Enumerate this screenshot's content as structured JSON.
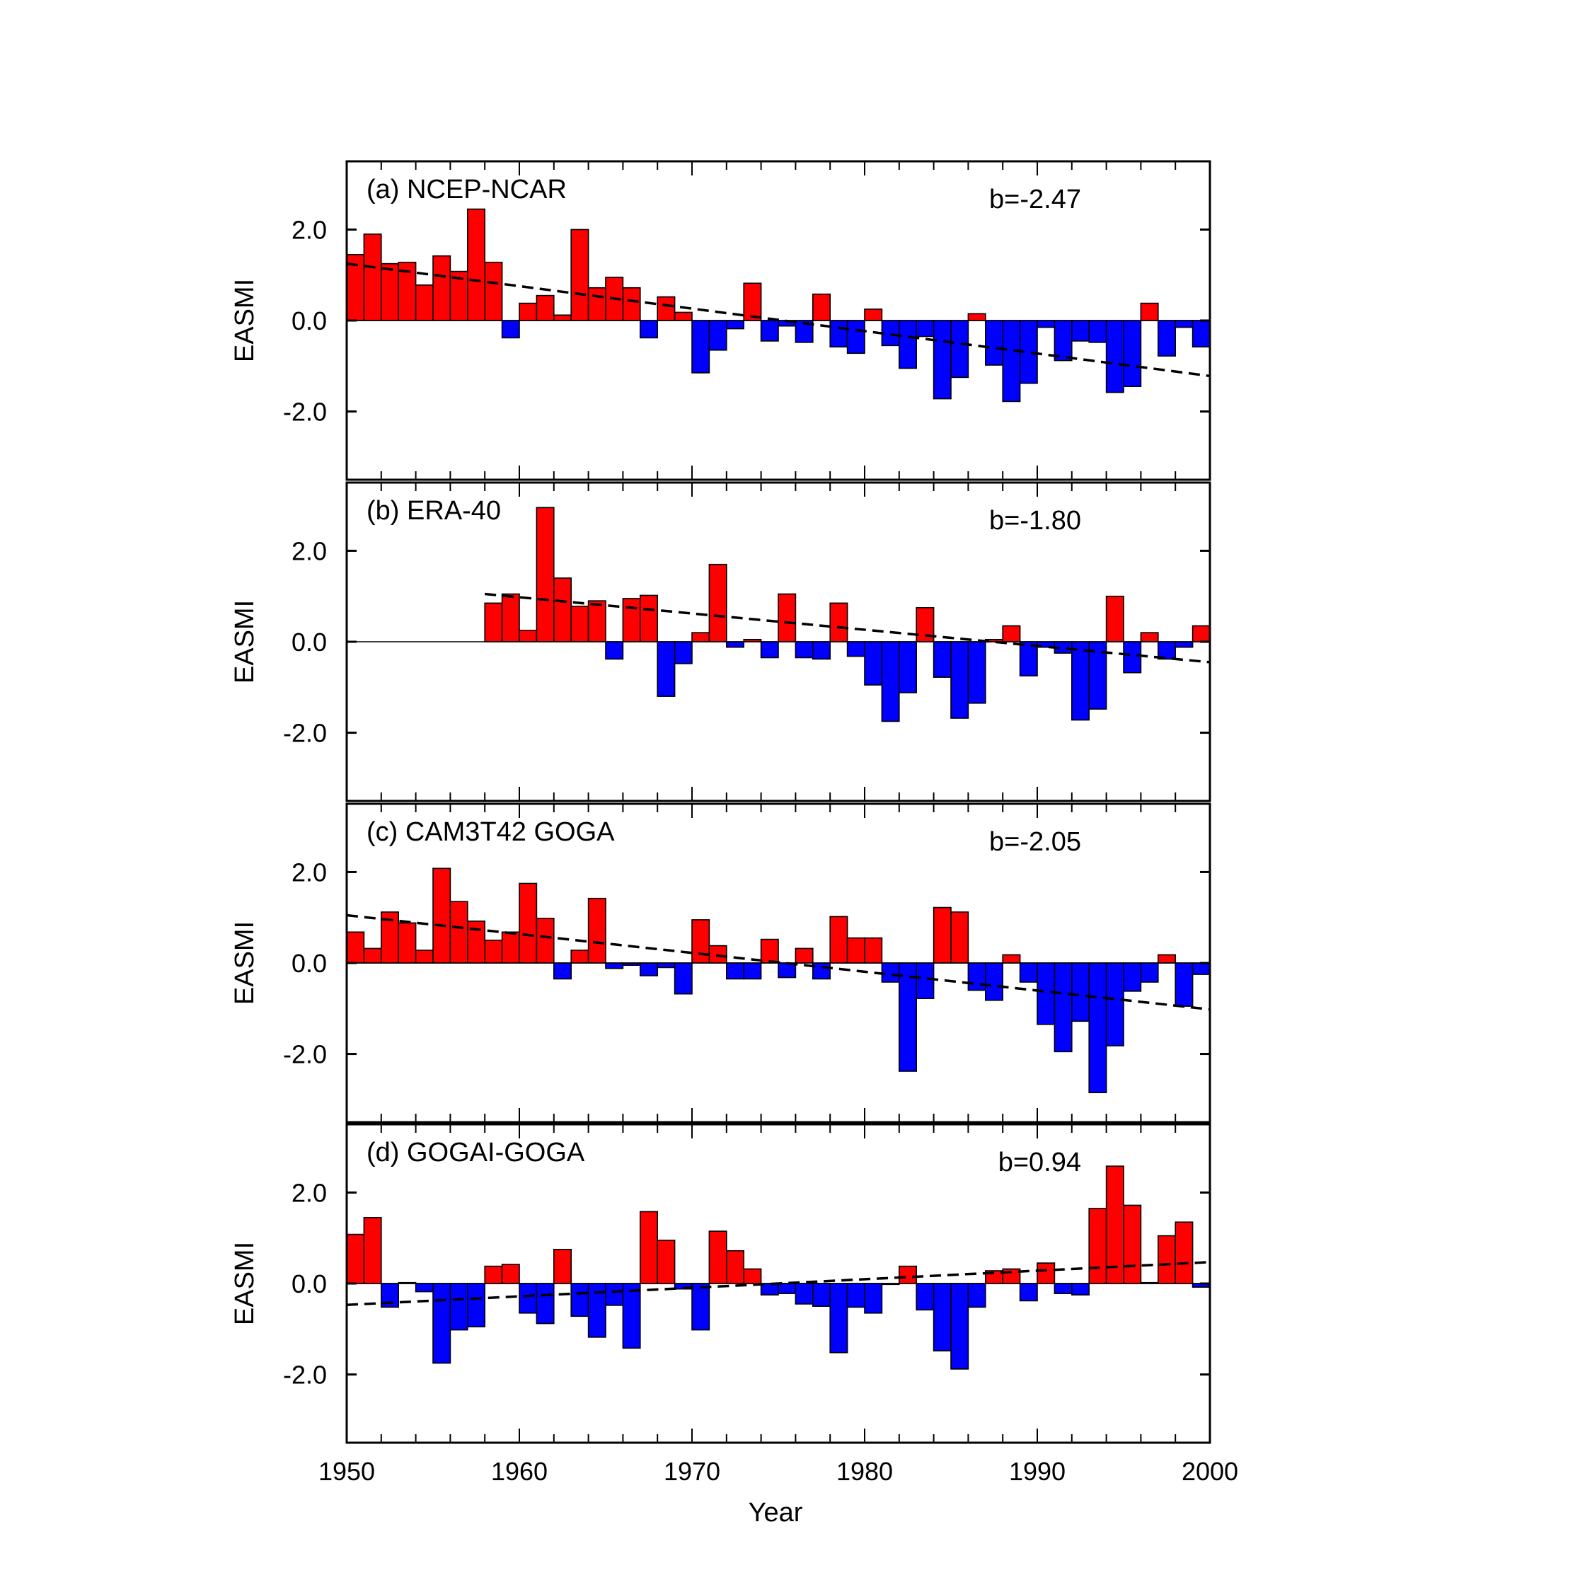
{
  "chart_data": [
    {
      "type": "bar",
      "title": "(a)  NCEP-NCAR",
      "annotation": "b=-2.47",
      "ylabel": "EASMI",
      "xlabel": "Year",
      "xlim": [
        1950,
        2000
      ],
      "ylim": [
        -3.5,
        3.5
      ],
      "yticks": [
        "2.0",
        "0.0",
        "-2.0"
      ],
      "x": [
        1950,
        1951,
        1952,
        1953,
        1954,
        1955,
        1956,
        1957,
        1958,
        1959,
        1960,
        1961,
        1962,
        1963,
        1964,
        1965,
        1966,
        1967,
        1968,
        1969,
        1970,
        1971,
        1972,
        1973,
        1974,
        1975,
        1976,
        1977,
        1978,
        1979,
        1980,
        1981,
        1982,
        1983,
        1984,
        1985,
        1986,
        1987,
        1988,
        1989,
        1990,
        1991,
        1992,
        1993,
        1994,
        1995,
        1996,
        1997,
        1998,
        1999
      ],
      "values": [
        1.45,
        1.9,
        1.25,
        1.28,
        0.78,
        1.42,
        1.08,
        2.45,
        1.28,
        -0.38,
        0.38,
        0.55,
        0.12,
        2.0,
        0.72,
        0.95,
        0.72,
        -0.38,
        0.52,
        0.18,
        -1.15,
        -0.65,
        -0.18,
        0.82,
        -0.45,
        -0.12,
        -0.48,
        0.58,
        -0.58,
        -0.72,
        0.25,
        -0.55,
        -1.05,
        -0.35,
        -1.72,
        -1.25,
        0.15,
        -0.98,
        -1.78,
        -1.38,
        -0.15,
        -0.88,
        -0.45,
        -0.48,
        -1.58,
        -1.45,
        0.38,
        -0.78,
        -0.15,
        -0.58
      ],
      "trend": {
        "x": [
          1950,
          2000
        ],
        "y": [
          1.25,
          -1.22
        ]
      },
      "positive_color": "#ff0000",
      "negative_color": "#0000ff"
    },
    {
      "type": "bar",
      "title": "(b) ERA-40",
      "annotation": "b=-1.80",
      "ylabel": "EASMI",
      "xlabel": "Year",
      "xlim": [
        1950,
        2000
      ],
      "ylim": [
        -3.5,
        3.5
      ],
      "yticks": [
        "2.0",
        "0.0",
        "-2.0"
      ],
      "x": [
        1958,
        1959,
        1960,
        1961,
        1962,
        1963,
        1964,
        1965,
        1966,
        1967,
        1968,
        1969,
        1970,
        1971,
        1972,
        1973,
        1974,
        1975,
        1976,
        1977,
        1978,
        1979,
        1980,
        1981,
        1982,
        1983,
        1984,
        1985,
        1986,
        1987,
        1988,
        1989,
        1990,
        1991,
        1992,
        1993,
        1994,
        1995,
        1996,
        1997,
        1998,
        1999
      ],
      "values": [
        0.85,
        1.05,
        0.25,
        2.95,
        1.4,
        0.78,
        0.9,
        -0.38,
        0.95,
        1.02,
        -1.2,
        -0.48,
        0.2,
        1.7,
        -0.12,
        0.05,
        -0.35,
        1.05,
        -0.35,
        -0.38,
        0.85,
        -0.32,
        -0.95,
        -1.75,
        -1.12,
        0.75,
        -0.78,
        -1.68,
        -1.35,
        0.05,
        0.35,
        -0.75,
        -0.12,
        -0.25,
        -1.72,
        -1.48,
        1.0,
        -0.68,
        0.2,
        -0.38,
        -0.12,
        0.35
      ],
      "trend": {
        "x": [
          1958,
          2000
        ],
        "y": [
          1.05,
          -0.45
        ]
      },
      "positive_color": "#ff0000",
      "negative_color": "#0000ff"
    },
    {
      "type": "bar",
      "title": "(c) CAM3T42 GOGA",
      "annotation": "b=-2.05",
      "ylabel": "EASMI",
      "xlabel": "Year",
      "xlim": [
        1950,
        2000
      ],
      "ylim": [
        -3.5,
        3.5
      ],
      "yticks": [
        "2.0",
        "0.0",
        "-2.0"
      ],
      "x": [
        1950,
        1951,
        1952,
        1953,
        1954,
        1955,
        1956,
        1957,
        1958,
        1959,
        1960,
        1961,
        1962,
        1963,
        1964,
        1965,
        1966,
        1967,
        1968,
        1969,
        1970,
        1971,
        1972,
        1973,
        1974,
        1975,
        1976,
        1977,
        1978,
        1979,
        1980,
        1981,
        1982,
        1983,
        1984,
        1985,
        1986,
        1987,
        1988,
        1989,
        1990,
        1991,
        1992,
        1993,
        1994,
        1995,
        1996,
        1997,
        1998,
        1999
      ],
      "values": [
        0.68,
        0.32,
        1.12,
        0.88,
        0.28,
        2.08,
        1.35,
        0.92,
        0.5,
        0.68,
        1.75,
        0.98,
        -0.35,
        0.28,
        1.42,
        -0.12,
        -0.05,
        -0.28,
        -0.1,
        -0.68,
        0.95,
        0.38,
        -0.35,
        -0.35,
        0.52,
        -0.32,
        0.32,
        -0.35,
        1.02,
        0.55,
        0.55,
        -0.42,
        -2.38,
        -0.78,
        1.22,
        1.12,
        -0.6,
        -0.82,
        0.18,
        -0.42,
        -1.35,
        -1.95,
        -1.28,
        -2.85,
        -1.82,
        -0.62,
        -0.42,
        0.18,
        -0.95,
        -0.25
      ],
      "trend": {
        "x": [
          1950,
          2000
        ],
        "y": [
          1.05,
          -1.02
        ]
      },
      "positive_color": "#ff0000",
      "negative_color": "#0000ff"
    },
    {
      "type": "bar",
      "title": "(d) GOGAI-GOGA",
      "annotation": "b=0.94",
      "ylabel": "EASMI",
      "xlabel": "Year",
      "xlim": [
        1950,
        2000
      ],
      "ylim": [
        -3.5,
        3.5
      ],
      "yticks": [
        "2.0",
        "0.0",
        "-2.0"
      ],
      "x": [
        1950,
        1951,
        1952,
        1953,
        1954,
        1955,
        1956,
        1957,
        1958,
        1959,
        1960,
        1961,
        1962,
        1963,
        1964,
        1965,
        1966,
        1967,
        1968,
        1969,
        1970,
        1971,
        1972,
        1973,
        1974,
        1975,
        1976,
        1977,
        1978,
        1979,
        1980,
        1981,
        1982,
        1983,
        1984,
        1985,
        1986,
        1987,
        1988,
        1989,
        1990,
        1991,
        1992,
        1993,
        1994,
        1995,
        1996,
        1997,
        1998,
        1999
      ],
      "values": [
        1.08,
        1.45,
        -0.52,
        0.02,
        -0.18,
        -1.75,
        -1.02,
        -0.95,
        0.38,
        0.42,
        -0.65,
        -0.88,
        0.75,
        -0.72,
        -1.18,
        -0.48,
        -1.42,
        1.58,
        0.95,
        -0.12,
        -1.02,
        1.15,
        0.72,
        0.32,
        -0.25,
        -0.22,
        -0.45,
        -0.5,
        -1.52,
        -0.52,
        -0.65,
        -0.02,
        0.38,
        -0.58,
        -1.48,
        -1.88,
        -0.52,
        0.28,
        0.32,
        -0.38,
        0.45,
        -0.22,
        -0.25,
        1.65,
        2.58,
        1.72,
        0.02,
        1.05,
        1.35,
        -0.08
      ],
      "trend": {
        "x": [
          1950,
          2000
        ],
        "y": [
          -0.47,
          0.47
        ]
      },
      "positive_color": "#ff0000",
      "negative_color": "#0000ff"
    }
  ],
  "xaxis": {
    "label": "Year",
    "ticks": [
      "1950",
      "1960",
      "1970",
      "1980",
      "1990",
      "2000"
    ],
    "tick_values": [
      1950,
      1960,
      1970,
      1980,
      1990,
      2000
    ]
  }
}
